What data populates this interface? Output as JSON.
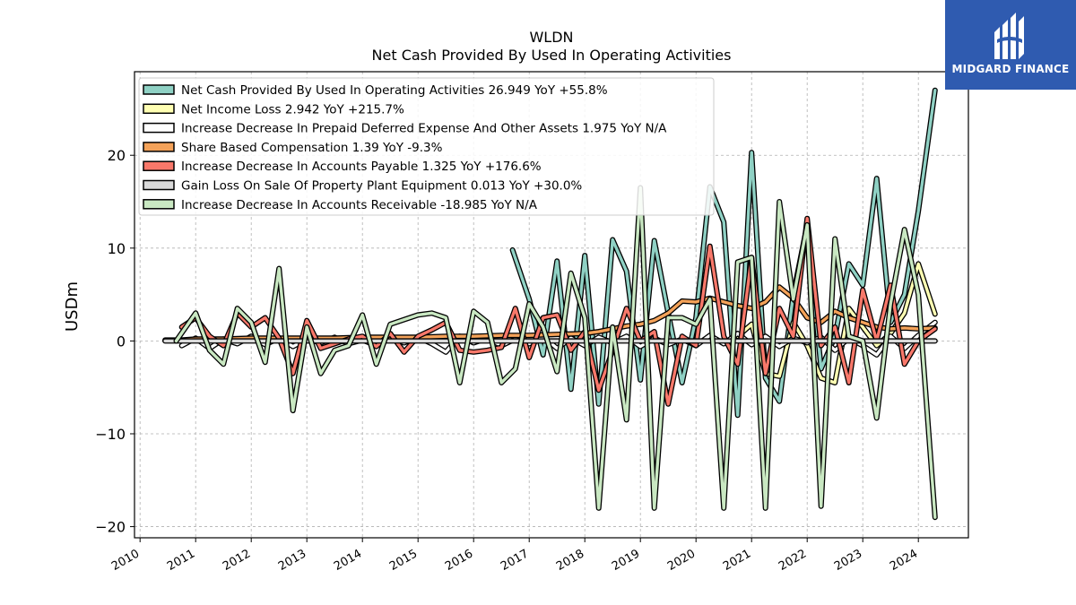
{
  "chart_data": {
    "type": "line",
    "title": "WLDN",
    "subtitle": "Net Cash Provided By Used In Operating Activities",
    "ylabel": "USDm",
    "xlabel": "",
    "xlim": [
      2009.9,
      2024.9
    ],
    "ylim": [
      -21.2,
      29
    ],
    "yticks": [
      -20,
      -10,
      0,
      10,
      20
    ],
    "xticks": [
      "2010",
      "2011",
      "2012",
      "2013",
      "2014",
      "2015",
      "2016",
      "2017",
      "2018",
      "2019",
      "2020",
      "2021",
      "2022",
      "2023",
      "2024"
    ],
    "grid": true,
    "legend_position": "top-left",
    "series": [
      {
        "name": "Net Cash Provided By Used In Operating Activities",
        "legend_label": "Net Cash Provided By Used In Operating Activities  26.949 YoY +55.8%",
        "color": "#8fd1c4",
        "x": [
          2016.7,
          2017.0,
          2017.25,
          2017.5,
          2017.75,
          2018.0,
          2018.25,
          2018.5,
          2018.75,
          2019.0,
          2019.25,
          2019.5,
          2019.75,
          2020.0,
          2020.25,
          2020.5,
          2020.75,
          2021.0,
          2021.25,
          2021.5,
          2021.75,
          2022.0,
          2022.25,
          2022.5,
          2022.75,
          2023.0,
          2023.25,
          2023.5,
          2023.75,
          2024.0,
          2024.3
        ],
        "values": [
          9.8,
          4.5,
          -1.5,
          8.6,
          -5.2,
          9.2,
          -6.8,
          10.9,
          7.5,
          -4.2,
          10.8,
          3.0,
          -4.5,
          2.5,
          16.6,
          12.8,
          -8.0,
          20.3,
          -4.0,
          -6.5,
          5.0,
          12.5,
          -3.0,
          0.5,
          8.3,
          6.0,
          17.5,
          2.0,
          5.0,
          14.0,
          27.0
        ]
      },
      {
        "name": "Net Income Loss",
        "legend_label": "Net Income Loss  2.942 YoY +215.7%",
        "color": "#ffffb3",
        "x": [
          2020.75,
          2021.0,
          2021.25,
          2021.5,
          2021.75,
          2022.0,
          2022.25,
          2022.5,
          2022.75,
          2023.0,
          2023.25,
          2023.5,
          2023.75,
          2024.0,
          2024.3
        ],
        "values": [
          0.5,
          1.8,
          -3.5,
          -3.8,
          2.0,
          -0.5,
          -4.0,
          -4.5,
          3.5,
          1.5,
          -0.5,
          0.8,
          3.0,
          8.3,
          2.9
        ]
      },
      {
        "name": "Increase Decrease In Prepaid Deferred Expense And Other Assets",
        "legend_label": "Increase Decrease In Prepaid Deferred Expense And Other Assets  1.975 YoY N/A",
        "color": "#ffffff",
        "x": [
          2010.75,
          2011.0,
          2011.25,
          2011.5,
          2011.75,
          2012.0,
          2012.25,
          2012.5,
          2012.75,
          2013.0,
          2013.25,
          2013.5,
          2013.75,
          2014.0,
          2014.25,
          2014.5,
          2014.75,
          2015.0,
          2015.25,
          2015.5,
          2015.75,
          2016.0,
          2016.25,
          2016.5,
          2016.75,
          2017.0,
          2017.25,
          2017.5,
          2017.75,
          2018.0,
          2018.25,
          2018.5,
          2018.75,
          2019.0,
          2019.25,
          2019.5,
          2019.75,
          2020.0,
          2020.25,
          2020.5,
          2020.75,
          2021.0,
          2021.25,
          2021.5,
          2021.75,
          2022.0,
          2022.25,
          2022.5,
          2022.75,
          2023.0,
          2023.25,
          2023.5,
          2023.75,
          2024.0,
          2024.3
        ],
        "values": [
          -0.5,
          0.3,
          -0.8,
          0.2,
          -0.3,
          0.5,
          -0.4,
          0.3,
          -0.6,
          0.2,
          -0.2,
          0.4,
          -0.3,
          0.1,
          -0.5,
          0.3,
          -0.2,
          0.4,
          -0.3,
          -1.2,
          0.5,
          -0.2,
          0.3,
          -0.5,
          0.2,
          -0.3,
          0.5,
          -0.8,
          0.3,
          -0.5,
          0.4,
          -0.2,
          0.5,
          -0.6,
          0.3,
          -0.4,
          0.2,
          -0.5,
          0.6,
          -0.3,
          0.8,
          -0.4,
          0.5,
          -0.6,
          0.3,
          -0.2,
          0.4,
          -1.0,
          0.3,
          -0.5,
          -1.5,
          0.5,
          -0.8,
          0.6,
          2.0
        ]
      },
      {
        "name": "Share Based Compensation",
        "legend_label": "Share Based Compensation  1.39 YoY -9.3%",
        "color": "#f4a259",
        "x": [
          2010.45,
          2010.75,
          2011.0,
          2011.5,
          2012.0,
          2012.5,
          2013.0,
          2013.5,
          2014.0,
          2014.5,
          2015.0,
          2015.5,
          2016.0,
          2016.5,
          2017.0,
          2017.5,
          2018.0,
          2018.25,
          2018.5,
          2018.75,
          2019.0,
          2019.25,
          2019.5,
          2019.75,
          2020.0,
          2020.25,
          2020.5,
          2020.75,
          2021.0,
          2021.25,
          2021.5,
          2021.75,
          2022.0,
          2022.25,
          2022.5,
          2022.75,
          2023.0,
          2023.25,
          2023.5,
          2023.75,
          2024.0,
          2024.3
        ],
        "values": [
          0.1,
          0.1,
          0.2,
          0.2,
          0.3,
          0.3,
          0.3,
          0.3,
          0.4,
          0.4,
          0.4,
          0.5,
          0.5,
          0.6,
          0.6,
          0.7,
          0.8,
          1.0,
          1.3,
          1.6,
          1.8,
          2.2,
          3.0,
          4.3,
          4.2,
          4.6,
          4.2,
          3.8,
          3.5,
          4.2,
          5.8,
          4.6,
          2.5,
          2.0,
          3.2,
          2.5,
          2.0,
          1.5,
          1.3,
          1.4,
          1.3,
          1.4
        ]
      },
      {
        "name": "Increase Decrease In Accounts Payable",
        "legend_label": "Increase Decrease In Accounts Payable  1.325 YoY +176.6%",
        "color": "#f8786a",
        "x": [
          2010.75,
          2011.0,
          2011.25,
          2011.5,
          2011.75,
          2012.0,
          2012.25,
          2012.5,
          2012.75,
          2013.0,
          2013.25,
          2013.5,
          2013.75,
          2014.0,
          2014.25,
          2014.5,
          2014.75,
          2015.0,
          2015.25,
          2015.5,
          2015.75,
          2016.0,
          2016.25,
          2016.5,
          2016.75,
          2017.0,
          2017.25,
          2017.5,
          2017.75,
          2018.0,
          2018.25,
          2018.5,
          2018.75,
          2019.0,
          2019.25,
          2019.5,
          2019.75,
          2020.0,
          2020.25,
          2020.5,
          2020.75,
          2021.0,
          2021.25,
          2021.5,
          2021.75,
          2022.0,
          2022.25,
          2022.5,
          2022.75,
          2023.0,
          2023.25,
          2023.5,
          2023.75,
          2024.0,
          2024.3
        ],
        "values": [
          1.5,
          2.5,
          0.5,
          -0.5,
          3.0,
          1.5,
          2.5,
          0.3,
          -3.5,
          2.2,
          -0.8,
          -0.3,
          0.2,
          0.5,
          -0.6,
          0.8,
          -1.2,
          0.5,
          1.2,
          2.0,
          -1.0,
          -1.2,
          -1.0,
          -0.7,
          3.5,
          -1.8,
          2.5,
          2.8,
          -1.0,
          1.0,
          -5.3,
          -1.0,
          3.5,
          0.0,
          1.0,
          -6.8,
          0.5,
          -0.5,
          10.2,
          0.5,
          -2.5,
          9.0,
          -3.5,
          3.5,
          0.5,
          13.2,
          -0.5,
          1.5,
          -4.5,
          5.5,
          0.0,
          6.0,
          -2.5,
          0.0,
          1.3
        ]
      },
      {
        "name": "Gain Loss On Sale Of Property Plant Equipment",
        "legend_label": "Gain Loss On Sale Of Property Plant Equipment  0.013 YoY +30.0%",
        "color": "#d9d9d9",
        "x": [
          2010.45,
          2011.0,
          2012.0,
          2013.0,
          2014.0,
          2015.0,
          2016.0,
          2017.0,
          2018.0,
          2019.0,
          2020.0,
          2021.0,
          2022.0,
          2023.0,
          2024.3
        ],
        "values": [
          0.0,
          0.0,
          0.0,
          0.0,
          0.0,
          0.0,
          0.0,
          0.0,
          0.0,
          0.0,
          0.0,
          0.0,
          0.0,
          0.0,
          0.0
        ]
      },
      {
        "name": "Increase Decrease In Accounts Receivable",
        "legend_label": "Increase Decrease In Accounts Receivable  -18.985 YoY N/A",
        "color": "#c9e8c2",
        "x": [
          2010.65,
          2011.0,
          2011.25,
          2011.5,
          2011.75,
          2012.0,
          2012.25,
          2012.5,
          2012.75,
          2013.0,
          2013.25,
          2013.5,
          2013.75,
          2014.0,
          2014.25,
          2014.5,
          2015.0,
          2015.25,
          2015.5,
          2015.75,
          2016.0,
          2016.25,
          2016.5,
          2016.75,
          2017.0,
          2017.25,
          2017.5,
          2017.75,
          2018.0,
          2018.25,
          2018.5,
          2018.75,
          2019.0,
          2019.25,
          2019.5,
          2019.75,
          2020.0,
          2020.25,
          2020.5,
          2020.75,
          2021.0,
          2021.25,
          2021.5,
          2021.75,
          2022.0,
          2022.25,
          2022.5,
          2022.75,
          2023.0,
          2023.25,
          2023.5,
          2023.75,
          2024.0,
          2024.3
        ],
        "values": [
          0.0,
          3.0,
          -1.0,
          -2.5,
          3.5,
          2.0,
          -2.3,
          7.8,
          -7.5,
          1.5,
          -3.5,
          -1.0,
          -0.5,
          2.8,
          -2.5,
          1.8,
          2.8,
          3.0,
          2.5,
          -4.5,
          3.2,
          2.0,
          -4.5,
          -3.0,
          4.0,
          1.5,
          -3.3,
          7.3,
          2.5,
          -18.0,
          1.5,
          -8.5,
          16.5,
          -18.0,
          2.5,
          2.5,
          1.8,
          4.5,
          -18.0,
          8.5,
          9.0,
          -18.0,
          15.0,
          4.5,
          12.5,
          -17.8,
          11.0,
          0.5,
          0.0,
          -8.3,
          4.0,
          12.0,
          5.0,
          -19.0
        ]
      }
    ]
  },
  "logo": {
    "text": "MIDGARD FINANCE"
  }
}
